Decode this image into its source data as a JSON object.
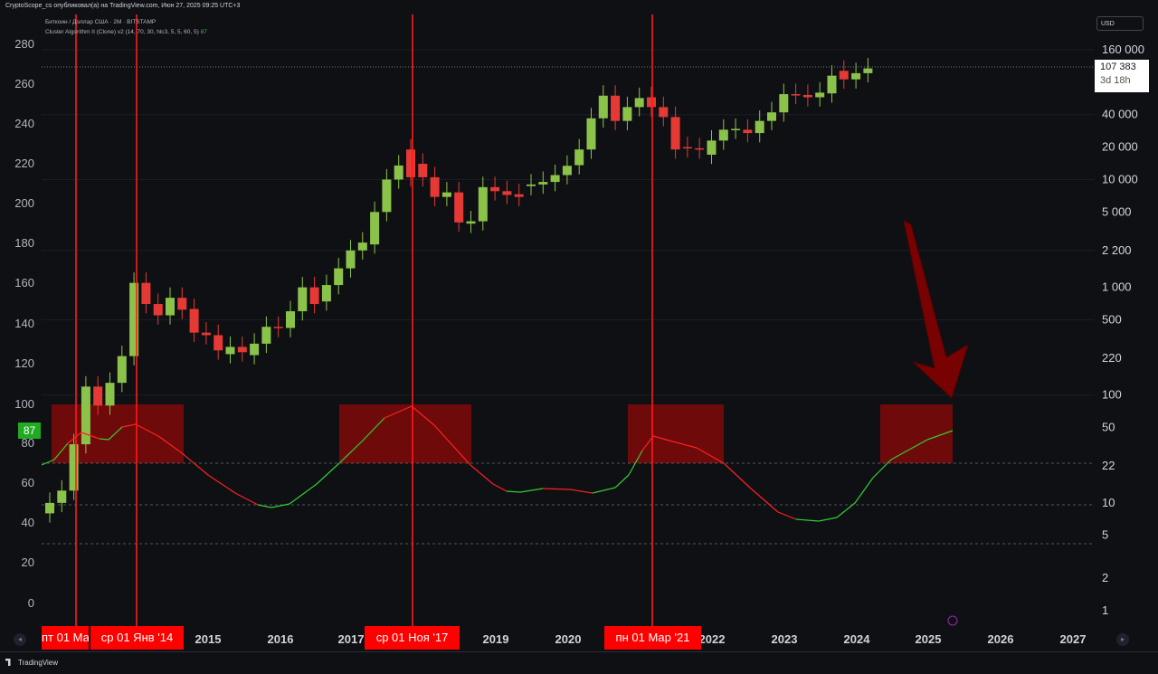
{
  "header": {
    "publisher": "CryptoScope_cs опубликовал(а) на TradingView.com, Июн 27, 2025 09:25 UTC+3"
  },
  "legend": {
    "symbol": "Биткоин / Доллар США · 2M · BITSTAMP",
    "indicator": "Cluster Algorithm II (Clone) v2 (14, 70, 30, hlc3, 5, 5, 60, 5)",
    "indicator_value": "87"
  },
  "currency_button": "USD",
  "last_price": {
    "value": "107 383",
    "countdown": "3d 18h"
  },
  "oscillator_label": "87",
  "left_axis": [
    "280",
    "260",
    "240",
    "220",
    "200",
    "180",
    "160",
    "140",
    "120",
    "100",
    "80",
    "60",
    "40",
    "20",
    "0"
  ],
  "right_axis": [
    "160 000",
    "40 000",
    "20 000",
    "10 000",
    "5 000",
    "2 200",
    "1 000",
    "500",
    "220",
    "100",
    "50",
    "22",
    "10",
    "5",
    "2",
    "1"
  ],
  "time_axis": [
    "2015",
    "2016",
    "2017",
    "2019",
    "2020",
    "2022",
    "2023",
    "2024",
    "2025",
    "2026",
    "2027"
  ],
  "date_badges": [
    "пт 01 Ма",
    "ср 01 Янв '14",
    "ср 01 Ноя '17",
    "пн 01 Мар '21"
  ],
  "footer": {
    "brand": "TradingView"
  },
  "nav": {
    "left": "◂",
    "right": "▸"
  },
  "colors": {
    "background": "#0f1014",
    "up_candle": "#8bc34a",
    "down_candle": "#e53935",
    "zone": "#7a0a0a",
    "vertical_line": "#ff1a1a",
    "osc_up": "#33cc33",
    "osc_down": "#ff2020",
    "arrow": "#8b0000",
    "badge": "#ff0000"
  },
  "chart_data": {
    "type": "candlestick",
    "scale": "log",
    "interval": "2M",
    "exchange": "BITSTAMP",
    "price_range": [
      1,
      160000
    ],
    "last_price": 107383,
    "candles": [
      {
        "o": 8,
        "c": 10,
        "d": "up"
      },
      {
        "o": 10,
        "c": 13,
        "d": "up"
      },
      {
        "o": 13,
        "c": 35,
        "d": "up"
      },
      {
        "o": 35,
        "c": 120,
        "d": "up"
      },
      {
        "o": 120,
        "c": 80,
        "d": "down"
      },
      {
        "o": 80,
        "c": 130,
        "d": "up"
      },
      {
        "o": 130,
        "c": 230,
        "d": "up"
      },
      {
        "o": 230,
        "c": 1100,
        "d": "up"
      },
      {
        "o": 1100,
        "c": 700,
        "d": "down"
      },
      {
        "o": 700,
        "c": 550,
        "d": "down"
      },
      {
        "o": 550,
        "c": 800,
        "d": "up"
      },
      {
        "o": 800,
        "c": 620,
        "d": "down"
      },
      {
        "o": 630,
        "c": 380,
        "d": "down"
      },
      {
        "o": 380,
        "c": 360,
        "d": "down"
      },
      {
        "o": 360,
        "c": 260,
        "d": "down"
      },
      {
        "o": 240,
        "c": 280,
        "d": "up"
      },
      {
        "o": 280,
        "c": 250,
        "d": "down"
      },
      {
        "o": 235,
        "c": 300,
        "d": "up"
      },
      {
        "o": 300,
        "c": 430,
        "d": "up"
      },
      {
        "o": 430,
        "c": 420,
        "d": "down"
      },
      {
        "o": 420,
        "c": 600,
        "d": "up"
      },
      {
        "o": 600,
        "c": 1000,
        "d": "up"
      },
      {
        "o": 1000,
        "c": 700,
        "d": "down"
      },
      {
        "o": 740,
        "c": 1050,
        "d": "up"
      },
      {
        "o": 1050,
        "c": 1500,
        "d": "up"
      },
      {
        "o": 1500,
        "c": 2200,
        "d": "up"
      },
      {
        "o": 2200,
        "c": 2600,
        "d": "up"
      },
      {
        "o": 2500,
        "c": 5000,
        "d": "up"
      },
      {
        "o": 5000,
        "c": 10000,
        "d": "up"
      },
      {
        "o": 10000,
        "c": 13500,
        "d": "up"
      },
      {
        "o": 19000,
        "c": 10500,
        "d": "down"
      },
      {
        "o": 14000,
        "c": 10500,
        "d": "down"
      },
      {
        "o": 10500,
        "c": 6900,
        "d": "down"
      },
      {
        "o": 6900,
        "c": 7600,
        "d": "up"
      },
      {
        "o": 7600,
        "c": 4000,
        "d": "down"
      },
      {
        "o": 3900,
        "c": 4100,
        "d": "up"
      },
      {
        "o": 4100,
        "c": 8500,
        "d": "up"
      },
      {
        "o": 8500,
        "c": 7800,
        "d": "down"
      },
      {
        "o": 7800,
        "c": 7200,
        "d": "down"
      },
      {
        "o": 7300,
        "c": 6900,
        "d": "down"
      },
      {
        "o": 8700,
        "c": 9000,
        "d": "up"
      },
      {
        "o": 9000,
        "c": 9500,
        "d": "up"
      },
      {
        "o": 9500,
        "c": 11000,
        "d": "up"
      },
      {
        "o": 11000,
        "c": 13400,
        "d": "up"
      },
      {
        "o": 13600,
        "c": 19000,
        "d": "up"
      },
      {
        "o": 19000,
        "c": 37000,
        "d": "up"
      },
      {
        "o": 37000,
        "c": 60000,
        "d": "up"
      },
      {
        "o": 60000,
        "c": 35000,
        "d": "down"
      },
      {
        "o": 35000,
        "c": 47000,
        "d": "up"
      },
      {
        "o": 47000,
        "c": 57000,
        "d": "up"
      },
      {
        "o": 58000,
        "c": 47000,
        "d": "down"
      },
      {
        "o": 47000,
        "c": 38000,
        "d": "down"
      },
      {
        "o": 38000,
        "c": 19000,
        "d": "down"
      },
      {
        "o": 20000,
        "c": 19500,
        "d": "down"
      },
      {
        "o": 19500,
        "c": 19000,
        "d": "down"
      },
      {
        "o": 17000,
        "c": 23000,
        "d": "up"
      },
      {
        "o": 23000,
        "c": 29000,
        "d": "up"
      },
      {
        "o": 29000,
        "c": 29500,
        "d": "up"
      },
      {
        "o": 29000,
        "c": 27000,
        "d": "down"
      },
      {
        "o": 27000,
        "c": 35000,
        "d": "up"
      },
      {
        "o": 35000,
        "c": 42000,
        "d": "up"
      },
      {
        "o": 42000,
        "c": 62000,
        "d": "up"
      },
      {
        "o": 62000,
        "c": 61000,
        "d": "down"
      },
      {
        "o": 61000,
        "c": 58000,
        "d": "down"
      },
      {
        "o": 58000,
        "c": 64000,
        "d": "up"
      },
      {
        "o": 63000,
        "c": 92000,
        "d": "up"
      },
      {
        "o": 102000,
        "c": 85000,
        "d": "down"
      },
      {
        "o": 85000,
        "c": 97000,
        "d": "up"
      },
      {
        "o": 97000,
        "c": 107383,
        "d": "up"
      }
    ],
    "oscillator": {
      "name": "Cluster Algorithm II (Clone) v2",
      "upper_level": 70,
      "lower_level": 30,
      "zone": [
        70,
        100
      ],
      "zones_on_axis": [
        "2013",
        "2017",
        "2021",
        "2025"
      ],
      "last_value": 87
    }
  }
}
